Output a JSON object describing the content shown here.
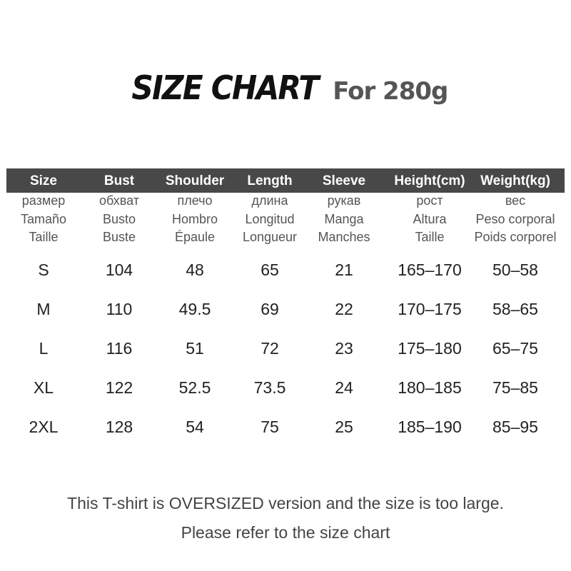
{
  "title": {
    "main": "SIZE CHART",
    "sub": "For 280g"
  },
  "header_color": "#484848",
  "columns": [
    {
      "label": "Size",
      "ru": "размер",
      "es": "Tamaño",
      "fr": "Taille"
    },
    {
      "label": "Bust",
      "ru": "обхват",
      "es": "Busto",
      "fr": "Buste"
    },
    {
      "label": "Shoulder",
      "ru": "плечо",
      "es": "Hombro",
      "fr": "Épaule"
    },
    {
      "label": "Length",
      "ru": "длина",
      "es": "Longitud",
      "fr": "Longueur"
    },
    {
      "label": "Sleeve",
      "ru": "рукав",
      "es": "Manga",
      "fr": "Manches"
    },
    {
      "label": "Height(cm)",
      "ru": "рост",
      "es": "Altura",
      "fr": "Taille"
    },
    {
      "label": "Weight(kg)",
      "ru": "вес",
      "es": "Peso corporal",
      "fr": "Poids corporel"
    }
  ],
  "rows": [
    [
      "S",
      "104",
      "48",
      "65",
      "21",
      "165–170",
      "50–58"
    ],
    [
      "M",
      "110",
      "49.5",
      "69",
      "22",
      "170–175",
      "58–65"
    ],
    [
      "L",
      "116",
      "51",
      "72",
      "23",
      "175–180",
      "65–75"
    ],
    [
      "XL",
      "122",
      "52.5",
      "73.5",
      "24",
      "180–185",
      "75–85"
    ],
    [
      "2XL",
      "128",
      "54",
      "75",
      "25",
      "185–190",
      "85–95"
    ]
  ],
  "notes": [
    "This T-shirt is OVERSIZED version and the size is too large.",
    "Please refer to the size chart"
  ]
}
